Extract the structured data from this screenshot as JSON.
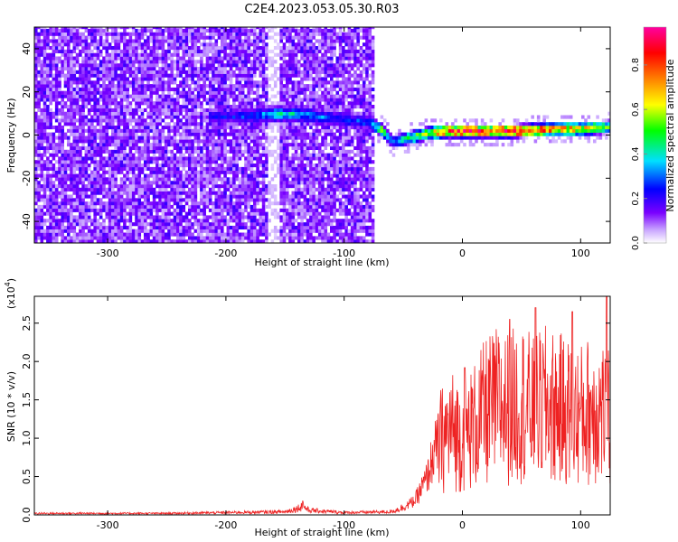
{
  "title": "C2E4.2023.053.05.30.R03",
  "chart_data": [
    {
      "type": "heatmap",
      "title": "C2E4.2023.053.05.30.R03",
      "xlabel": "Height of straight line (km)",
      "ylabel": "Frequency (Hz)",
      "xlim": [
        -362,
        125
      ],
      "ylim": [
        -50,
        50
      ],
      "xticks": [
        -300,
        -200,
        -100,
        0,
        100
      ],
      "xtick_labels": [
        "-300",
        "-200",
        "-100",
        "0",
        "100"
      ],
      "yticks": [
        -40,
        -20,
        0,
        20,
        40
      ],
      "ytick_labels": [
        "-40",
        "-20",
        "0",
        "20",
        "40"
      ],
      "colorbar": {
        "label": "Normalized spectral amplitude",
        "range": [
          0,
          0.97
        ],
        "ticks": [
          0.0,
          0.2,
          0.4,
          0.6,
          0.8
        ],
        "tick_labels": [
          "0.0",
          "0.2",
          "0.4",
          "0.6",
          "0.8"
        ],
        "colormap": [
          "#ffffff",
          "#7a00ff",
          "#0000ff",
          "#00e0ff",
          "#00ff00",
          "#ffff00",
          "#ff8000",
          "#ff0000",
          "#ff00a0"
        ]
      },
      "ridge": {
        "x": [
          -215,
          -180,
          -160,
          -140,
          -110,
          -80,
          -70,
          -60,
          -45,
          -30,
          -15,
          0,
          20,
          40,
          60,
          80,
          100,
          125
        ],
        "y": [
          8,
          8,
          9,
          9,
          7,
          5,
          2,
          -4,
          -2,
          0,
          1,
          1,
          1,
          1,
          1.5,
          2,
          2,
          3
        ],
        "peak_amplitude": [
          0.25,
          0.3,
          0.45,
          0.4,
          0.3,
          0.3,
          0.55,
          0.3,
          0.5,
          0.6,
          0.8,
          0.9,
          0.85,
          0.95,
          0.85,
          0.75,
          0.7,
          0.5
        ]
      },
      "noise_region_x": [
        -362,
        -75
      ]
    },
    {
      "type": "line",
      "title": "",
      "xlabel": "Height of straight line (km)",
      "ylabel": "SNR (10 * v/v)",
      "y_multiplier": "(x10",
      "y_multiplier_exp": "4",
      "y_multiplier_close": ")",
      "xlim": [
        -362,
        125
      ],
      "ylim": [
        0,
        2.85
      ],
      "xticks": [
        -300,
        -200,
        -100,
        0,
        100
      ],
      "xtick_labels": [
        "-300",
        "-200",
        "-100",
        "0",
        "100"
      ],
      "yticks": [
        0.0,
        0.5,
        1.0,
        1.5,
        2.0,
        2.5
      ],
      "ytick_labels": [
        "0.0",
        "0.5",
        "1.0",
        "1.5",
        "2.0",
        "2.5"
      ],
      "series": [
        {
          "name": "SNR",
          "color": "#ee2222",
          "x": [
            -362,
            -300,
            -250,
            -200,
            -150,
            -140,
            -135,
            -130,
            -100,
            -60,
            -50,
            -40,
            -30,
            -25,
            -20,
            -10,
            0,
            10,
            20,
            30,
            40,
            50,
            60,
            70,
            80,
            90,
            100,
            110,
            120,
            125
          ],
          "y": [
            0.02,
            0.02,
            0.02,
            0.03,
            0.04,
            0.08,
            0.12,
            0.06,
            0.03,
            0.04,
            0.1,
            0.2,
            0.5,
            0.8,
            1.0,
            1.2,
            1.1,
            1.25,
            1.45,
            1.55,
            1.5,
            1.6,
            1.45,
            1.55,
            1.5,
            1.45,
            1.4,
            1.5,
            1.45,
            1.3
          ],
          "peaks": [
            {
              "x": -135,
              "y": 0.18
            },
            {
              "x": 2,
              "y": 1.92
            },
            {
              "x": 40,
              "y": 2.55
            },
            {
              "x": 62,
              "y": 2.7
            },
            {
              "x": 93,
              "y": 2.65
            },
            {
              "x": 122,
              "y": 2.85
            }
          ]
        }
      ]
    }
  ]
}
